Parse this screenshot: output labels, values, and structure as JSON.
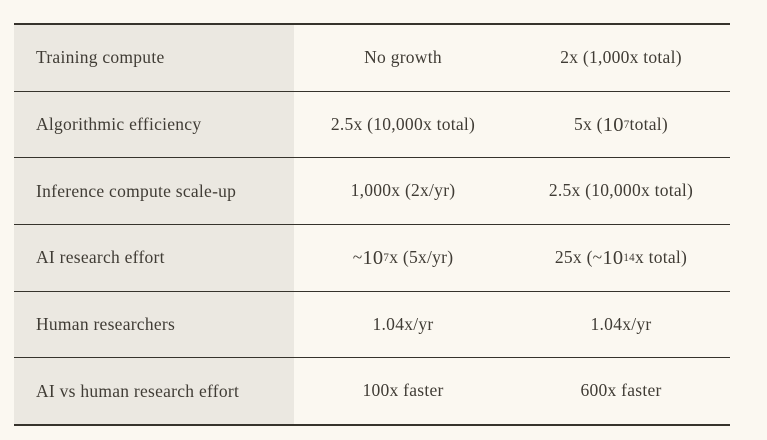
{
  "colors": {
    "page_background": "#fbf8f1",
    "label_column_background": "#ebe8e1",
    "border": "#36332c",
    "text": "#403c35"
  },
  "table": {
    "rows": [
      {
        "id": "training-compute",
        "label": "Training compute",
        "value_a": [
          {
            "text": "No growth"
          }
        ],
        "value_b": [
          {
            "text": "2x (1,000x total)"
          }
        ]
      },
      {
        "id": "algorithmic-efficiency",
        "label": "Algorithmic efficiency",
        "value_a": [
          {
            "text": "2.5x (10,000x total)"
          }
        ],
        "value_b": [
          {
            "text": "5x ("
          },
          {
            "text": "10",
            "style": "big"
          },
          {
            "text": "7",
            "style": "sup"
          },
          {
            "text": " total)"
          }
        ]
      },
      {
        "id": "inference-compute-scale-up",
        "label": "Inference compute scale-up",
        "value_a": [
          {
            "text": "1,000x (2x/yr)"
          }
        ],
        "value_b": [
          {
            "text": "2.5x (10,000x total)"
          }
        ]
      },
      {
        "id": "ai-research-effort",
        "label": "AI research effort",
        "value_a": [
          {
            "text": "~"
          },
          {
            "text": "10",
            "style": "big"
          },
          {
            "text": "7",
            "style": "sup"
          },
          {
            "text": "x (5x/yr)"
          }
        ],
        "value_b": [
          {
            "text": "25x (~"
          },
          {
            "text": "10",
            "style": "big"
          },
          {
            "text": "14",
            "style": "sup"
          },
          {
            "text": "x total)"
          }
        ]
      },
      {
        "id": "human-researchers",
        "label": "Human researchers",
        "value_a": [
          {
            "text": "1.04x/yr"
          }
        ],
        "value_b": [
          {
            "text": "1.04x/yr"
          }
        ]
      },
      {
        "id": "ai-vs-human-research-effort",
        "label": "AI vs human research effort",
        "value_a": [
          {
            "text": "100x faster"
          }
        ],
        "value_b": [
          {
            "text": "600x faster"
          }
        ]
      }
    ]
  }
}
